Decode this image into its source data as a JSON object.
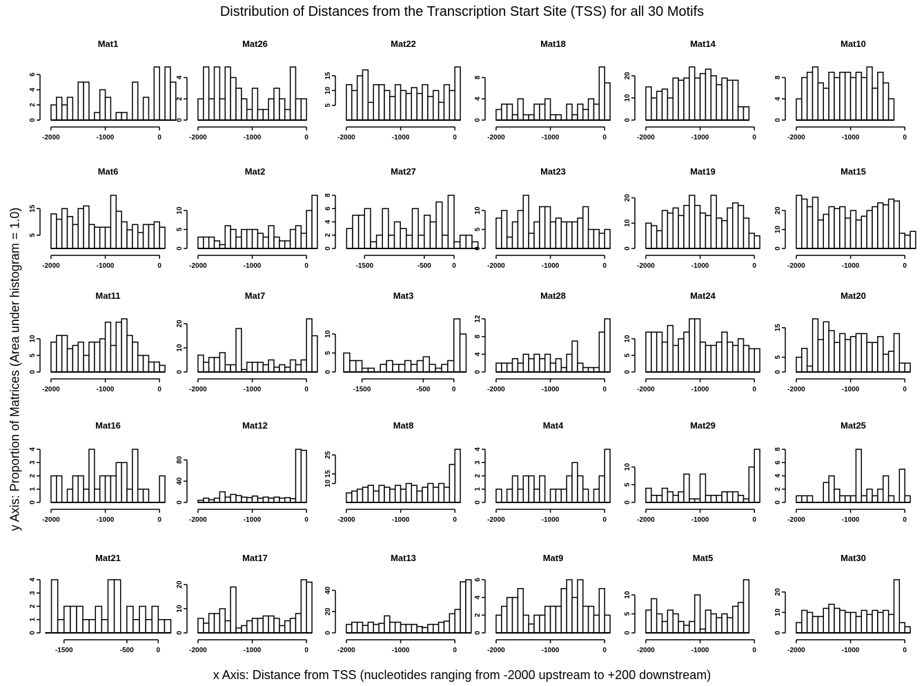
{
  "title": "Distribution of Distances from the Transcription Start Site (TSS) for all 30 Motifs",
  "xlabel": "x Axis: Distance from TSS (nucleotides ranging from -2000 upstream to +200 downstream)",
  "ylabel": "y Axis: Proportion of Matrices (Area under histogram = 1.0)",
  "chart_data": [
    {
      "type": "bar",
      "title": "Mat1",
      "bin_width": 100,
      "x_start": -2000,
      "values": [
        2,
        3,
        2,
        3,
        0,
        5,
        5,
        0,
        1,
        4,
        3,
        0,
        1,
        1,
        0,
        5,
        0,
        3,
        0,
        7,
        0,
        7,
        5
      ],
      "xlim": [
        -2050,
        150
      ],
      "ylim": [
        0,
        7
      ],
      "yticks": [
        0,
        2,
        4,
        6
      ],
      "xticks": [
        -2000,
        -1000,
        0
      ]
    },
    {
      "type": "bar",
      "title": "Mat6",
      "bin_width": 100,
      "x_start": -2000,
      "values": [
        13,
        11,
        15,
        12,
        9,
        15,
        16,
        9,
        8,
        8,
        8,
        20,
        14,
        10,
        7,
        9,
        6,
        9,
        9,
        10,
        8
      ],
      "xlim": [
        -2050,
        150
      ],
      "ylim": [
        0,
        20
      ],
      "yticks": [
        5,
        15
      ],
      "xticks": [
        -2000,
        -1000,
        0
      ]
    },
    {
      "type": "bar",
      "title": "Mat11",
      "bin_width": 100,
      "x_start": -2000,
      "values": [
        9,
        11,
        11,
        7,
        8,
        9,
        5,
        9,
        9,
        10,
        15,
        8,
        15,
        16,
        11,
        9,
        5,
        5,
        3,
        3,
        2
      ],
      "xlim": [
        -2050,
        150
      ],
      "ylim": [
        0,
        16
      ],
      "yticks": [
        0,
        5,
        10
      ],
      "xticks": [
        -2000,
        -1000,
        0
      ]
    },
    {
      "type": "bar",
      "title": "Mat16",
      "bin_width": 100,
      "x_start": -2000,
      "values": [
        2,
        2,
        0,
        1,
        2,
        2,
        1,
        4,
        1,
        2,
        2,
        2,
        3,
        3,
        1,
        4,
        1,
        1,
        0,
        0,
        2
      ],
      "xlim": [
        -2050,
        150
      ],
      "ylim": [
        0,
        4
      ],
      "yticks": [
        0,
        1,
        2,
        3,
        4
      ],
      "xticks": [
        -2000,
        -1000,
        0
      ]
    },
    {
      "type": "bar",
      "title": "Mat21",
      "bin_width": 100,
      "x_start": -1800,
      "values": [
        0,
        4,
        1,
        2,
        2,
        2,
        1,
        1,
        2,
        1,
        4,
        4,
        0,
        2,
        1,
        2,
        1,
        2,
        1,
        1
      ],
      "xlim": [
        -1750,
        150
      ],
      "ylim": [
        0,
        4
      ],
      "yticks": [
        0,
        1,
        2,
        3,
        4
      ],
      "xticks": [
        -1500,
        -500,
        0
      ]
    },
    {
      "type": "bar",
      "title": "Mat26",
      "bin_width": 100,
      "x_start": -2000,
      "values": [
        2,
        5,
        2,
        5,
        2,
        5,
        4,
        3,
        2,
        1,
        3,
        1,
        1,
        2,
        3,
        2,
        1,
        5,
        2,
        2
      ],
      "xlim": [
        -2050,
        150
      ],
      "ylim": [
        0,
        5
      ],
      "yticks": [
        0,
        2,
        4
      ],
      "xticks": [
        -2000,
        -1000,
        0
      ]
    },
    {
      "type": "bar",
      "title": "Mat2",
      "bin_width": 100,
      "x_start": -2000,
      "values": [
        3,
        3,
        3,
        2,
        1,
        6,
        5,
        3,
        5,
        5,
        5,
        4,
        3,
        6,
        3,
        2,
        2,
        5,
        6,
        4,
        10,
        14
      ],
      "xlim": [
        -2050,
        150
      ],
      "ylim": [
        0,
        14
      ],
      "yticks": [
        0,
        5,
        10
      ],
      "xticks": [
        -2000,
        -1000,
        0
      ]
    },
    {
      "type": "bar",
      "title": "Mat7",
      "bin_width": 100,
      "x_start": -2000,
      "values": [
        7,
        4,
        6,
        6,
        8,
        3,
        3,
        18,
        1,
        4,
        4,
        4,
        3,
        5,
        2,
        3,
        2,
        5,
        3,
        5,
        22,
        15
      ],
      "xlim": [
        -2050,
        150
      ],
      "ylim": [
        0,
        22
      ],
      "yticks": [
        0,
        10,
        20
      ],
      "xticks": [
        -2000,
        -1000,
        0
      ]
    },
    {
      "type": "bar",
      "title": "Mat12",
      "bin_width": 100,
      "x_start": -2000,
      "values": [
        4,
        8,
        5,
        8,
        20,
        10,
        15,
        13,
        10,
        9,
        12,
        8,
        10,
        8,
        10,
        8,
        9,
        7,
        100,
        98
      ],
      "xlim": [
        -2050,
        150
      ],
      "ylim": [
        0,
        100
      ],
      "yticks": [
        0,
        40,
        80
      ],
      "xticks": [
        -2000,
        -1000,
        0
      ]
    },
    {
      "type": "bar",
      "title": "Mat17",
      "bin_width": 100,
      "x_start": -2000,
      "values": [
        6,
        4,
        8,
        8,
        10,
        5,
        19,
        2,
        3,
        5,
        6,
        6,
        7,
        7,
        6,
        3,
        5,
        6,
        8,
        22,
        21
      ],
      "xlim": [
        -2050,
        150
      ],
      "ylim": [
        0,
        22
      ],
      "yticks": [
        0,
        10,
        20
      ],
      "xticks": [
        -2000,
        -1000,
        0
      ]
    },
    {
      "type": "bar",
      "title": "Mat22",
      "bin_width": 100,
      "x_start": -2000,
      "values": [
        12,
        10,
        15,
        17,
        6,
        12,
        12,
        10,
        8,
        12,
        10,
        9,
        11,
        9,
        12,
        8,
        10,
        6,
        12,
        10,
        18
      ],
      "xlim": [
        -2050,
        150
      ],
      "ylim": [
        0,
        18
      ],
      "yticks": [
        5,
        10,
        15
      ],
      "xticks": [
        -2000,
        -1000,
        0
      ]
    },
    {
      "type": "bar",
      "title": "Mat27",
      "bin_width": 100,
      "x_start": -1800,
      "values": [
        3,
        5,
        5,
        6,
        1,
        2,
        6,
        2,
        4,
        3,
        2,
        6,
        2,
        5,
        4,
        7,
        2,
        8,
        1,
        2,
        2,
        1
      ],
      "xlim": [
        -1850,
        150
      ],
      "ylim": [
        0,
        8
      ],
      "yticks": [
        0,
        2,
        4,
        6,
        8
      ],
      "xticks": [
        -1500,
        -500,
        0
      ]
    },
    {
      "type": "bar",
      "title": "Mat3",
      "bin_width": 100,
      "x_start": -1800,
      "values": [
        5,
        3,
        3,
        1,
        1,
        0,
        2,
        3,
        2,
        2,
        3,
        2,
        3,
        4,
        2,
        1,
        2,
        3,
        14,
        10
      ],
      "xlim": [
        -1800,
        150
      ],
      "ylim": [
        0,
        14
      ],
      "yticks": [
        0,
        5,
        10
      ],
      "xticks": [
        -1500,
        -500,
        0
      ]
    },
    {
      "type": "bar",
      "title": "Mat8",
      "bin_width": 100,
      "x_start": -2000,
      "values": [
        5,
        6,
        7,
        8,
        9,
        6,
        9,
        8,
        7,
        9,
        7,
        10,
        9,
        6,
        8,
        10,
        8,
        10,
        8,
        20,
        28
      ],
      "xlim": [
        -2050,
        150
      ],
      "ylim": [
        0,
        28
      ],
      "yticks": [
        10,
        15,
        25
      ],
      "xticks": [
        -2000,
        -1000,
        0
      ]
    },
    {
      "type": "bar",
      "title": "Mat13",
      "bin_width": 100,
      "x_start": -2000,
      "values": [
        8,
        10,
        10,
        7,
        10,
        8,
        9,
        16,
        10,
        10,
        8,
        8,
        8,
        6,
        5,
        8,
        8,
        10,
        11,
        18,
        22,
        48,
        50
      ],
      "xlim": [
        -2050,
        150
      ],
      "ylim": [
        0,
        50
      ],
      "yticks": [
        0,
        20,
        40
      ],
      "xticks": [
        -2000,
        -1000,
        0
      ]
    },
    {
      "type": "bar",
      "title": "Mat18",
      "bin_width": 100,
      "x_start": -2000,
      "values": [
        2,
        3,
        3,
        1,
        4,
        1,
        1,
        3,
        3,
        4,
        1,
        1,
        0,
        3,
        1,
        3,
        2,
        4,
        3,
        10,
        7
      ],
      "xlim": [
        -2050,
        150
      ],
      "ylim": [
        0,
        10
      ],
      "yticks": [
        0,
        4,
        8
      ],
      "xticks": [
        -2000,
        -1000,
        0
      ]
    },
    {
      "type": "bar",
      "title": "Mat23",
      "bin_width": 100,
      "x_start": -2000,
      "values": [
        8,
        10,
        3,
        7,
        10,
        14,
        4,
        7,
        11,
        11,
        7,
        8,
        7,
        7,
        7,
        8,
        11,
        5,
        5,
        4,
        5
      ],
      "xlim": [
        -2050,
        150
      ],
      "ylim": [
        0,
        14
      ],
      "yticks": [
        0,
        5,
        10
      ],
      "xticks": [
        -2000,
        -1000,
        0
      ]
    },
    {
      "type": "bar",
      "title": "Mat28",
      "bin_width": 100,
      "x_start": -2000,
      "values": [
        2,
        2,
        2,
        3,
        2,
        4,
        3,
        4,
        3,
        4,
        2,
        3,
        1,
        4,
        7,
        2,
        1,
        1,
        1,
        9,
        12
      ],
      "xlim": [
        -2050,
        150
      ],
      "ylim": [
        0,
        12
      ],
      "yticks": [
        0,
        4,
        8,
        12
      ],
      "xticks": [
        -2000,
        -1000,
        0
      ]
    },
    {
      "type": "bar",
      "title": "Mat4",
      "bin_width": 100,
      "x_start": -2000,
      "values": [
        1,
        0,
        1,
        2,
        1,
        2,
        2,
        1,
        2,
        0,
        1,
        1,
        1,
        2,
        3,
        2,
        1,
        0,
        1,
        2,
        4
      ],
      "xlim": [
        -2050,
        150
      ],
      "ylim": [
        0,
        4
      ],
      "yticks": [
        0,
        1,
        2,
        3,
        4
      ],
      "xticks": [
        -2000,
        -1000,
        0
      ]
    },
    {
      "type": "bar",
      "title": "Mat9",
      "bin_width": 100,
      "x_start": -2000,
      "values": [
        2,
        3,
        4,
        4,
        5,
        2,
        1,
        2,
        2,
        3,
        3,
        3,
        5,
        6,
        4,
        6,
        3,
        3,
        2,
        5,
        2
      ],
      "xlim": [
        -2050,
        150
      ],
      "ylim": [
        0,
        6
      ],
      "yticks": [
        0,
        2,
        4,
        6
      ],
      "xticks": [
        -2000,
        -1000,
        0
      ]
    },
    {
      "type": "bar",
      "title": "Mat14",
      "bin_width": 100,
      "x_start": -2000,
      "values": [
        15,
        10,
        13,
        14,
        10,
        19,
        18,
        19,
        24,
        19,
        21,
        23,
        20,
        16,
        19,
        18,
        18,
        6,
        6
      ],
      "xlim": [
        -2050,
        150
      ],
      "ylim": [
        0,
        24
      ],
      "yticks": [
        0,
        10,
        20
      ],
      "xticks": [
        -2000,
        -1000,
        0
      ]
    },
    {
      "type": "bar",
      "title": "Mat19",
      "bin_width": 100,
      "x_start": -2000,
      "values": [
        10,
        9,
        7,
        15,
        14,
        16,
        13,
        17,
        21,
        17,
        14,
        13,
        21,
        12,
        11,
        16,
        18,
        17,
        12,
        6,
        5
      ],
      "xlim": [
        -2050,
        150
      ],
      "ylim": [
        0,
        21
      ],
      "yticks": [
        0,
        10,
        20
      ],
      "xticks": [
        -2000,
        -1000,
        0
      ]
    },
    {
      "type": "bar",
      "title": "Mat24",
      "bin_width": 100,
      "x_start": -2000,
      "values": [
        12,
        12,
        12,
        9,
        14,
        8,
        10,
        12,
        16,
        16,
        9,
        8,
        8,
        9,
        12,
        9,
        8,
        10,
        8,
        7,
        7
      ],
      "xlim": [
        -2050,
        150
      ],
      "ylim": [
        0,
        16
      ],
      "yticks": [
        0,
        5,
        10
      ],
      "xticks": [
        -2000,
        -1000,
        0
      ]
    },
    {
      "type": "bar",
      "title": "Mat29",
      "bin_width": 100,
      "x_start": -2000,
      "values": [
        4,
        2,
        2,
        4,
        3,
        2,
        3,
        8,
        1,
        1,
        8,
        2,
        2,
        2,
        3,
        3,
        3,
        2,
        1,
        10,
        15
      ],
      "xlim": [
        -2050,
        150
      ],
      "ylim": [
        0,
        15
      ],
      "yticks": [
        0,
        5,
        10
      ],
      "xticks": [
        -2000,
        -1000,
        0
      ]
    },
    {
      "type": "bar",
      "title": "Mat5",
      "bin_width": 100,
      "x_start": -2000,
      "values": [
        6,
        9,
        5,
        3,
        6,
        5,
        3,
        2,
        3,
        10,
        1,
        6,
        5,
        4,
        5,
        4,
        7,
        8,
        14
      ],
      "xlim": [
        -2050,
        150
      ],
      "ylim": [
        0,
        14
      ],
      "yticks": [
        0,
        5,
        10
      ],
      "xticks": [
        -2000,
        -1000,
        0
      ]
    },
    {
      "type": "bar",
      "title": "Mat10",
      "bin_width": 100,
      "x_start": -2000,
      "values": [
        4,
        8,
        9,
        10,
        7,
        6,
        9,
        8,
        9,
        9,
        8,
        9,
        8,
        10,
        6,
        9,
        7,
        4
      ],
      "xlim": [
        -2050,
        150
      ],
      "ylim": [
        0,
        10
      ],
      "yticks": [
        0,
        4,
        8
      ],
      "xticks": [
        -2000,
        -1000,
        0
      ]
    },
    {
      "type": "bar",
      "title": "Mat15",
      "bin_width": 100,
      "x_start": -2000,
      "values": [
        28,
        26,
        22,
        27,
        15,
        18,
        22,
        21,
        22,
        16,
        20,
        15,
        17,
        20,
        22,
        24,
        23,
        26,
        25,
        8,
        7,
        9
      ],
      "xlim": [
        -2050,
        150
      ],
      "ylim": [
        0,
        28
      ],
      "yticks": [
        0,
        10,
        20
      ],
      "xticks": [
        -2000,
        -1000,
        0
      ]
    },
    {
      "type": "bar",
      "title": "Mat20",
      "bin_width": 100,
      "x_start": -2000,
      "values": [
        5,
        8,
        2,
        18,
        11,
        17,
        14,
        10,
        13,
        11,
        12,
        13,
        13,
        10,
        10,
        12,
        6,
        7,
        13,
        3,
        3
      ],
      "xlim": [
        -2050,
        150
      ],
      "ylim": [
        0,
        18
      ],
      "yticks": [
        0,
        5,
        15
      ],
      "xticks": [
        -2000,
        -1000,
        0
      ]
    },
    {
      "type": "bar",
      "title": "Mat25",
      "bin_width": 100,
      "x_start": -2000,
      "values": [
        1,
        1,
        1,
        0,
        0,
        3,
        4,
        2,
        1,
        1,
        1,
        8,
        1,
        2,
        1,
        2,
        4,
        1,
        0,
        5,
        1
      ],
      "xlim": [
        -2050,
        150
      ],
      "ylim": [
        0,
        8
      ],
      "yticks": [
        0,
        2,
        4,
        6,
        8
      ],
      "xticks": [
        -2000,
        -1000,
        0
      ]
    },
    {
      "type": "bar",
      "title": "Mat30",
      "bin_width": 100,
      "x_start": -2000,
      "values": [
        5,
        11,
        10,
        8,
        8,
        12,
        14,
        12,
        11,
        10,
        10,
        8,
        11,
        9,
        11,
        10,
        11,
        9,
        26,
        5,
        3
      ],
      "xlim": [
        -2050,
        150
      ],
      "ylim": [
        0,
        26
      ],
      "yticks": [
        0,
        10,
        20
      ],
      "xticks": [
        -2000,
        -1000,
        0
      ]
    }
  ]
}
